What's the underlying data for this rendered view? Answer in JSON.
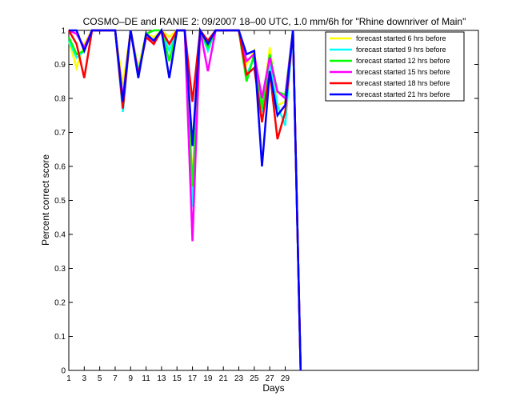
{
  "chart_data": {
    "type": "line",
    "title": "COSMO–DE and RANIE 2: 09/2007 18–00 UTC, 1.0 mm/6h for \"Rhine downriver of Main\"",
    "xlabel": "Days",
    "ylabel": "Percent correct score",
    "xlim": [
      1,
      54
    ],
    "ylim": [
      0,
      1
    ],
    "xticks": [
      1,
      3,
      5,
      7,
      9,
      11,
      13,
      15,
      17,
      19,
      21,
      23,
      25,
      27,
      29
    ],
    "yticks": [
      0,
      0.1,
      0.2,
      0.3,
      0.4,
      0.5,
      0.6,
      0.7,
      0.8,
      0.9,
      1
    ],
    "legend_position": "top-right",
    "grid": false,
    "x": [
      1,
      2,
      3,
      4,
      5,
      6,
      7,
      8,
      9,
      10,
      11,
      12,
      13,
      14,
      15,
      16,
      17,
      18,
      19,
      20,
      21,
      22,
      23,
      24,
      25,
      26,
      27,
      28,
      29,
      30,
      31
    ],
    "series": [
      {
        "name": "forecast started 6 hrs before",
        "color": "#ffff00",
        "values": [
          0.97,
          0.89,
          0.96,
          1,
          1,
          1,
          1,
          0.84,
          1,
          0.89,
          0.99,
          0.98,
          1,
          0.98,
          1,
          1,
          0.56,
          1,
          0.95,
          1,
          1,
          1,
          1,
          0.9,
          0.94,
          0.77,
          0.95,
          0.78,
          0.79,
          1,
          0
        ]
      },
      {
        "name": "forecast started 9 hrs before",
        "color": "#00ffff",
        "values": [
          0.97,
          0.92,
          0.94,
          1,
          1,
          1,
          1,
          0.76,
          1,
          0.88,
          0.98,
          0.97,
          1,
          0.94,
          1,
          1,
          0.48,
          1,
          0.94,
          1,
          1,
          1,
          1,
          0.87,
          0.92,
          0.76,
          0.9,
          0.78,
          0.72,
          1,
          0
        ]
      },
      {
        "name": "forecast started 12 hrs before",
        "color": "#00ff00",
        "values": [
          0.98,
          0.93,
          0.94,
          1,
          1,
          1,
          1,
          0.79,
          1,
          0.87,
          0.99,
          1,
          1,
          0.91,
          1,
          1,
          0.54,
          1,
          0.95,
          1,
          1,
          1,
          1,
          0.85,
          0.93,
          0.77,
          0.93,
          0.82,
          0.81,
          1,
          0
        ]
      },
      {
        "name": "forecast started 15 hrs before",
        "color": "#ff00ff",
        "values": [
          1,
          0.99,
          0.95,
          1,
          1,
          1,
          1,
          0.8,
          1,
          0.87,
          0.98,
          0.97,
          1,
          0.96,
          1,
          1,
          0.38,
          1,
          0.88,
          1,
          1,
          1,
          1,
          0.91,
          0.93,
          0.8,
          0.92,
          0.82,
          0.8,
          1,
          0
        ]
      },
      {
        "name": "forecast started 18 hrs before",
        "color": "#ff0000",
        "values": [
          1,
          0.96,
          0.86,
          1,
          1,
          1,
          1,
          0.77,
          1,
          0.87,
          0.98,
          0.96,
          1,
          0.96,
          1,
          1,
          0.79,
          1,
          0.97,
          1,
          1,
          1,
          1,
          0.87,
          0.89,
          0.73,
          0.88,
          0.68,
          0.76,
          1,
          0
        ]
      },
      {
        "name": "forecast started 21 hrs before",
        "color": "#0000ff",
        "values": [
          1,
          1,
          0.94,
          1,
          1,
          1,
          1,
          0.79,
          1,
          0.86,
          0.99,
          0.97,
          1,
          0.86,
          1,
          1,
          0.66,
          1,
          0.96,
          1,
          1,
          1,
          1,
          0.93,
          0.94,
          0.6,
          0.88,
          0.75,
          0.78,
          1,
          0
        ]
      }
    ]
  }
}
